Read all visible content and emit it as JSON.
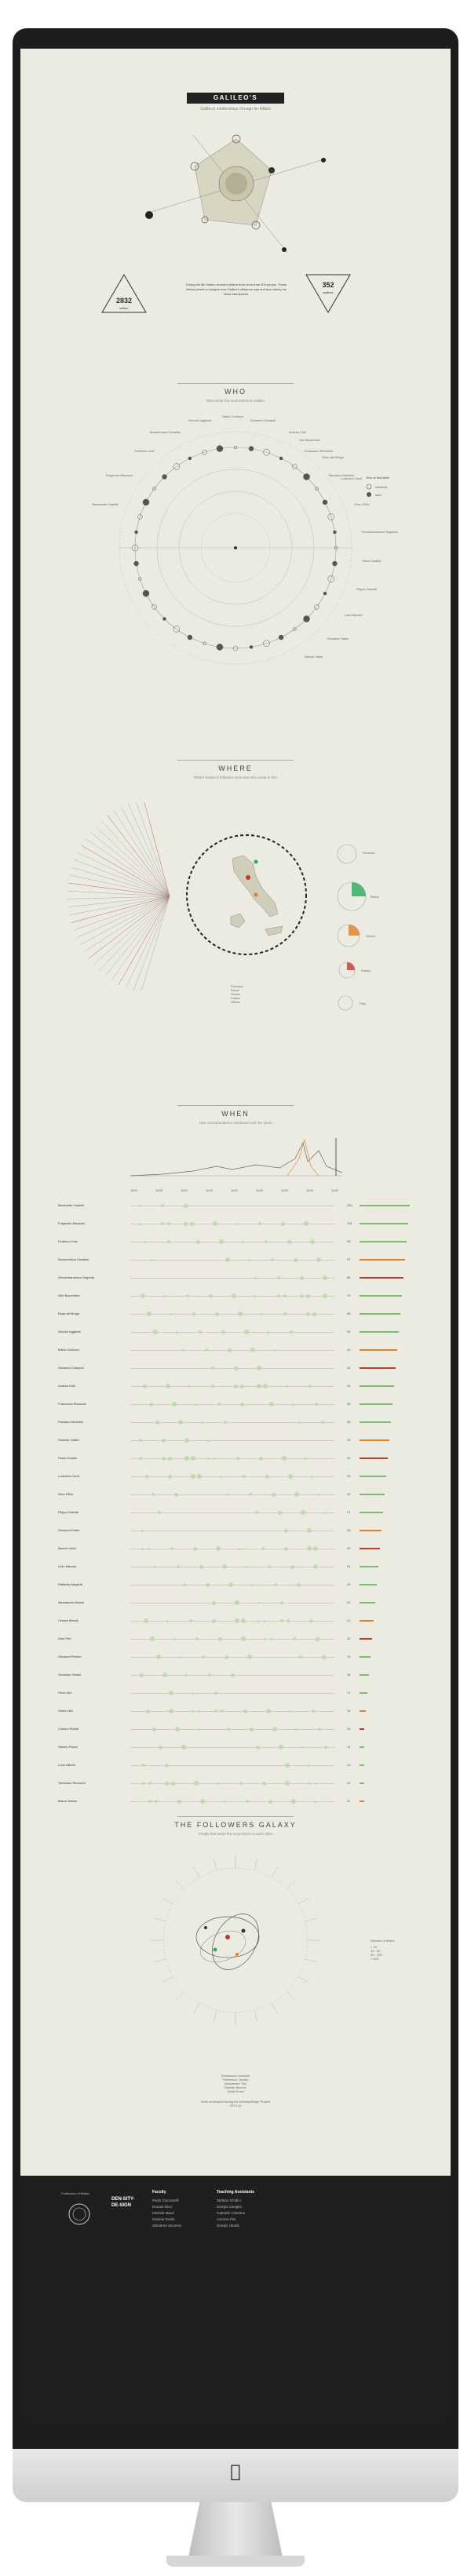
{
  "header": {
    "title": "GALILEO'S FOLLOWERS",
    "subtitle": "Galileo's relationships through his letters",
    "stat_left_value": "2832",
    "stat_left_label": "letters",
    "stat_right_value": "352",
    "stat_right_label": "authors",
    "intro_text": "During his life Galileo received letters from more than 300 people. These letters permit to imagine how Galileo's influence was and how widely his ideas had spread."
  },
  "who": {
    "title": "WHO",
    "subtitle": "Who wrote the most letters to Galileo",
    "legend_title": "Year of first letter",
    "legend_items": [
      "received",
      "sent"
    ],
    "names_left": [
      "Benedetto Castelli",
      "Fulgenzio Micanzio",
      "Federico Cesi",
      "Bonaventura Cavalieri",
      "Niccolò Aggiunti",
      "Mario Guiducci",
      "Giovanni Ciampoli",
      "Andrea Cioli",
      "Francesco Rinuccini",
      "Famiano Michelini"
    ],
    "names_right": [
      "Geri Bocchineri",
      "Esaù del Borgo",
      "Lodovico Cardi",
      "Orso d'Elci",
      "Giovanfrancesco Sagredo",
      "Paolo Gualdo",
      "Filippo Salviati",
      "Lelio Marzari",
      "Giovanni Faber",
      "Baccio Valori"
    ]
  },
  "where": {
    "title": "WHERE",
    "subtitle": "Where Galileo's followers were and who wrote to him",
    "pie_labels": [
      "Florence",
      "Rome",
      "Venice",
      "Padua",
      "Pisa"
    ],
    "legend_items": [
      "Florence",
      "Rome",
      "Venice",
      "Padua",
      "Others"
    ]
  },
  "when": {
    "title": "WHEN",
    "subtitle": "How correspondence continued over the years",
    "years": [
      "1600",
      "1605",
      "1610",
      "1615",
      "1620",
      "1625",
      "1630",
      "1635",
      "1640"
    ],
    "rows": [
      {
        "name": "Benedetto Castelli",
        "count": "330"
      },
      {
        "name": "Fulgenzio Micanzio",
        "count": "118"
      },
      {
        "name": "Federico Cesi",
        "count": "99"
      },
      {
        "name": "Bonaventura Cavalieri",
        "count": "97"
      },
      {
        "name": "Giovanfrancesco Sagredo",
        "count": "86"
      },
      {
        "name": "Geri Bocchineri",
        "count": "70"
      },
      {
        "name": "Esaù del Borgo",
        "count": "58"
      },
      {
        "name": "Niccolò Aggiunti",
        "count": "54"
      },
      {
        "name": "Mario Guiducci",
        "count": "46"
      },
      {
        "name": "Giovanni Ciampoli",
        "count": "44"
      },
      {
        "name": "Andrea Cioli",
        "count": "40"
      },
      {
        "name": "Francesco Rinuccini",
        "count": "38"
      },
      {
        "name": "Famiano Michelini",
        "count": "36"
      },
      {
        "name": "Roberto Galilei",
        "count": "33"
      },
      {
        "name": "Paolo Gualdo",
        "count": "32"
      },
      {
        "name": "Lodovico Cardi",
        "count": "30"
      },
      {
        "name": "Orso d'Elci",
        "count": "29"
      },
      {
        "name": "Filippo Salviati",
        "count": "27"
      },
      {
        "name": "Giovanni Faber",
        "count": "26"
      },
      {
        "name": "Baccio Valori",
        "count": "25"
      },
      {
        "name": "Lelio Marzari",
        "count": "24"
      },
      {
        "name": "Raffaello Magiotti",
        "count": "23"
      },
      {
        "name": "Alessandro Marsili",
        "count": "22"
      },
      {
        "name": "Cesare Marsili",
        "count": "21"
      },
      {
        "name": "Dino Peri",
        "count": "20"
      },
      {
        "name": "Giovanni Pieroni",
        "count": "19"
      },
      {
        "name": "Vincenzo Viviani",
        "count": "18"
      },
      {
        "name": "Piero Dini",
        "count": "17"
      },
      {
        "name": "Giulio Libri",
        "count": "16"
      },
      {
        "name": "Cosimo Ridolfi",
        "count": "15"
      },
      {
        "name": "Ottavio Pisani",
        "count": "14"
      },
      {
        "name": "Luca Valerio",
        "count": "13"
      },
      {
        "name": "Tommaso Rinuccini",
        "count": "12"
      },
      {
        "name": "Marco Welser",
        "count": "11"
      }
    ]
  },
  "galaxy": {
    "title": "THE FOLLOWERS GALAXY",
    "subtitle": "People that wrote the most letters to each other",
    "legend_title": "Number of letters",
    "legend_items": [
      "< 10",
      "10 - 50",
      "50 - 100",
      "> 100"
    ]
  },
  "credits": {
    "lines": [
      "Francesca Lombardi",
      "Francesco Cavallo",
      "Alessandro Tosi",
      "Daniele Bianchi",
      "Giulia Rossi"
    ],
    "note": "Work developed during the DensityDesign Project",
    "year": "2013-14"
  },
  "footer": {
    "school": "Politecnico di Milano",
    "brand": "DEN-SITY-DE-SIGN",
    "faculty_title": "Faculty",
    "faculty": [
      "Paolo Ciuccarelli",
      "Donato Ricci",
      "Michele Mauri",
      "Daniele Guido",
      "Salvatore Iaconesi"
    ],
    "assistants_title": "Teaching Assistants",
    "assistants": [
      "Stefano Ghidini",
      "Giorgio Caviglia",
      "Gabriele Colombo",
      "Azzurra Pini",
      "Giorgio Uboldi"
    ]
  }
}
